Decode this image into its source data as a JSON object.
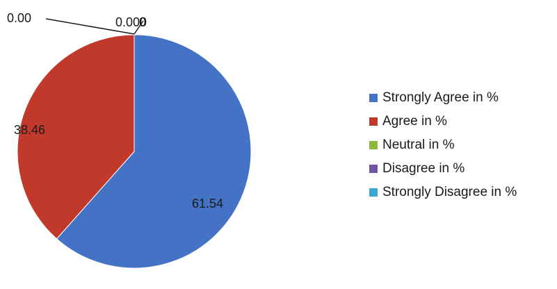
{
  "chart_data": {
    "type": "pie",
    "title": "",
    "series": [
      {
        "categories": [
          "Strongly Agree in %",
          "Agree in %",
          "Neutral in %",
          "Disagree in %",
          "Strongly Disagree in %"
        ],
        "values": [
          61.54,
          38.46,
          0.0,
          0.0,
          0.0
        ]
      }
    ],
    "data_labels": [
      "61.54",
      "38.46",
      "0.00",
      "0.000",
      "0"
    ],
    "colors": [
      "#4472C4",
      "#C0392B",
      "#8DB83E",
      "#7055A5",
      "#38A9D4"
    ],
    "legend_position": "right",
    "start_angle": "top, clockwise"
  }
}
